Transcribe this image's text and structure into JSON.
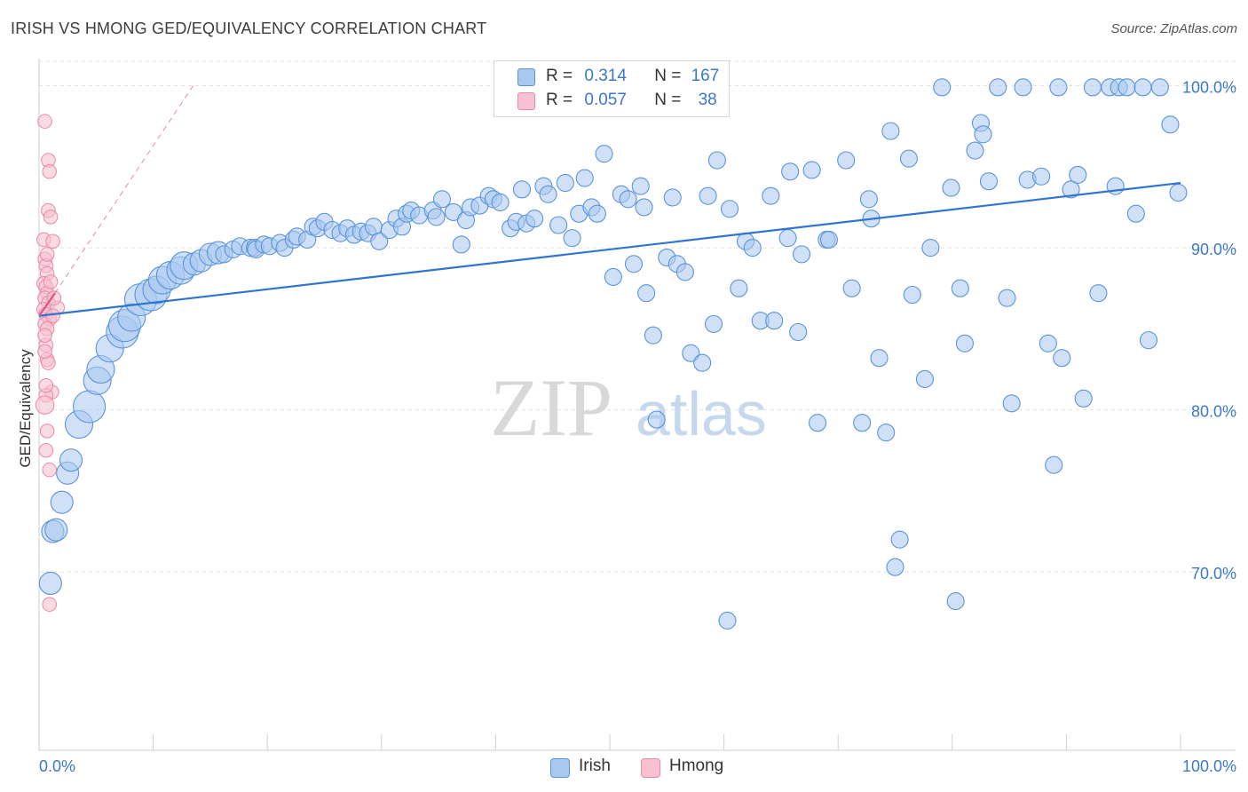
{
  "header": {
    "title": "IRISH VS HMONG GED/EQUIVALENCY CORRELATION CHART",
    "source": "Source: ZipAtlas.com"
  },
  "watermark": {
    "zip": "ZIP",
    "atlas": "atlas"
  },
  "legend": {
    "irish": {
      "r_label": "R =",
      "r_value": "0.314",
      "n_label": "N =",
      "n_value": "167"
    },
    "hmong": {
      "r_label": "R =",
      "r_value": "0.057",
      "n_label": "N =",
      "n_value": "38"
    }
  },
  "bottom_legend": {
    "irish": "Irish",
    "hmong": "Hmong"
  },
  "colors": {
    "irish_fill": "#a9c8f0",
    "irish_stroke": "#5a94d8",
    "irish_line": "#2f74d0",
    "hmong_fill": "#f7c1d1",
    "hmong_stroke": "#e88aa8",
    "hmong_line": "#e0557f",
    "grid": "#e2e2e2",
    "label": "#3b78c8"
  },
  "chart_data": {
    "type": "scatter",
    "title": "IRISH VS HMONG GED/EQUIVALENCY CORRELATION CHART",
    "ylabel": "GED/Equivalency",
    "xlabel": "",
    "xlim": [
      0,
      100
    ],
    "ylim": [
      59,
      102
    ],
    "x_tick_labels": [
      "0.0%",
      "100.0%"
    ],
    "y_ticks": [
      70,
      80,
      90,
      100
    ],
    "y_tick_labels": [
      "70.0%",
      "80.0%",
      "90.0%",
      "100.0%"
    ],
    "grid": true,
    "legend_position": "top-center",
    "series": [
      {
        "name": "Irish",
        "r": 0.314,
        "n": 167,
        "trend": {
          "x0": 0,
          "y0": 85.8,
          "x1": 100,
          "y1": 94.0
        },
        "points": [
          [
            1,
            69.3,
            3
          ],
          [
            1.2,
            72.5,
            3
          ],
          [
            1.5,
            72.6,
            3
          ],
          [
            2,
            74.3,
            3
          ],
          [
            2.5,
            76.1,
            3
          ],
          [
            2.8,
            76.9,
            3
          ],
          [
            3.5,
            79.1,
            4
          ],
          [
            4.4,
            80.2,
            5
          ],
          [
            5.1,
            81.8,
            4
          ],
          [
            5.4,
            82.5,
            4
          ],
          [
            6.2,
            83.8,
            4
          ],
          [
            7.3,
            84.8,
            5
          ],
          [
            7.5,
            85.2,
            5
          ],
          [
            8.1,
            85.7,
            4
          ],
          [
            8.9,
            86.8,
            5
          ],
          [
            9.8,
            87.1,
            5
          ],
          [
            10.3,
            87.4,
            4
          ],
          [
            10.8,
            88.0,
            4
          ],
          [
            11.5,
            88.3,
            4
          ],
          [
            12.4,
            88.6,
            4
          ],
          [
            12.7,
            88.9,
            4
          ],
          [
            13.6,
            89.0,
            3
          ],
          [
            14.2,
            89.2,
            3
          ],
          [
            15.0,
            89.6,
            3
          ],
          [
            15.7,
            89.7,
            3
          ],
          [
            16.2,
            89.6,
            2
          ],
          [
            17.0,
            89.9,
            2
          ],
          [
            17.6,
            90.1,
            2
          ],
          [
            18.5,
            90.0,
            2
          ],
          [
            18.9,
            90.0,
            2
          ],
          [
            19.0,
            89.9,
            2
          ],
          [
            19.7,
            90.2,
            2
          ],
          [
            20.2,
            90.1,
            2
          ],
          [
            21.1,
            90.3,
            2
          ],
          [
            21.5,
            90.0,
            2
          ],
          [
            22.3,
            90.5,
            2
          ],
          [
            22.6,
            90.7,
            2
          ],
          [
            23.5,
            90.5,
            2
          ],
          [
            24.0,
            91.3,
            2
          ],
          [
            24.4,
            91.2,
            2
          ],
          [
            25.0,
            91.6,
            2
          ],
          [
            25.7,
            91.1,
            2
          ],
          [
            26.4,
            90.9,
            2
          ],
          [
            27.0,
            91.2,
            2
          ],
          [
            27.6,
            90.8,
            2
          ],
          [
            28.2,
            91.0,
            2
          ],
          [
            28.8,
            90.9,
            2
          ],
          [
            29.3,
            91.3,
            2
          ],
          [
            29.8,
            90.4,
            2
          ],
          [
            30.7,
            91.1,
            2
          ],
          [
            31.3,
            91.8,
            2
          ],
          [
            31.8,
            91.3,
            2
          ],
          [
            32.2,
            92.1,
            2
          ],
          [
            32.6,
            92.3,
            2
          ],
          [
            33.3,
            92.0,
            2
          ],
          [
            34.5,
            92.3,
            2
          ],
          [
            34.8,
            91.9,
            2
          ],
          [
            35.3,
            93.0,
            2
          ],
          [
            36.3,
            92.2,
            2
          ],
          [
            37.0,
            90.2,
            2
          ],
          [
            37.4,
            91.7,
            2
          ],
          [
            37.8,
            92.5,
            2
          ],
          [
            38.6,
            92.6,
            2
          ],
          [
            39.4,
            93.2,
            2
          ],
          [
            39.8,
            93.0,
            2
          ],
          [
            40.4,
            92.8,
            2
          ],
          [
            41.3,
            91.2,
            2
          ],
          [
            41.8,
            91.6,
            2
          ],
          [
            42.3,
            93.6,
            2
          ],
          [
            42.7,
            91.5,
            2
          ],
          [
            43.4,
            91.8,
            2
          ],
          [
            44.2,
            93.8,
            2
          ],
          [
            44.6,
            93.3,
            2
          ],
          [
            45.5,
            91.4,
            2
          ],
          [
            46.1,
            94.0,
            2
          ],
          [
            46.7,
            90.6,
            2
          ],
          [
            47.3,
            92.1,
            2
          ],
          [
            47.8,
            94.3,
            2
          ],
          [
            48.4,
            92.5,
            2
          ],
          [
            48.9,
            92.1,
            2
          ],
          [
            49.5,
            95.8,
            2
          ],
          [
            50.3,
            88.2,
            2
          ],
          [
            51.0,
            93.3,
            2
          ],
          [
            51.6,
            93.0,
            2
          ],
          [
            52.1,
            89.0,
            2
          ],
          [
            52.7,
            93.8,
            2
          ],
          [
            53.0,
            92.5,
            2
          ],
          [
            53.2,
            87.2,
            2
          ],
          [
            53.8,
            84.6,
            2
          ],
          [
            54.1,
            79.4,
            2
          ],
          [
            55.0,
            89.4,
            2
          ],
          [
            55.5,
            93.1,
            2
          ],
          [
            55.9,
            89.0,
            2
          ],
          [
            56.6,
            88.5,
            2
          ],
          [
            57.1,
            83.5,
            2
          ],
          [
            58.1,
            82.9,
            2
          ],
          [
            58.6,
            93.2,
            2
          ],
          [
            59.1,
            85.3,
            2
          ],
          [
            59.4,
            95.4,
            2
          ],
          [
            60.3,
            67.0,
            2
          ],
          [
            60.5,
            92.4,
            2
          ],
          [
            61.3,
            87.5,
            2
          ],
          [
            61.9,
            90.4,
            2
          ],
          [
            62.5,
            90.0,
            2
          ],
          [
            63.2,
            85.5,
            2
          ],
          [
            64.1,
            93.2,
            2
          ],
          [
            64.4,
            85.5,
            2
          ],
          [
            65.6,
            90.6,
            2
          ],
          [
            65.8,
            94.7,
            2
          ],
          [
            66.5,
            84.8,
            2
          ],
          [
            66.8,
            89.6,
            2
          ],
          [
            67.7,
            94.8,
            2
          ],
          [
            68.2,
            79.2,
            2
          ],
          [
            69.0,
            90.5,
            2
          ],
          [
            69.2,
            90.5,
            2
          ],
          [
            70.7,
            95.4,
            2
          ],
          [
            71.2,
            87.5,
            2
          ],
          [
            72.1,
            79.2,
            2
          ],
          [
            72.7,
            93.0,
            2
          ],
          [
            72.9,
            91.8,
            2
          ],
          [
            73.6,
            83.2,
            2
          ],
          [
            74.2,
            78.6,
            2
          ],
          [
            74.6,
            97.2,
            2
          ],
          [
            75.0,
            70.3,
            2
          ],
          [
            75.4,
            72.0,
            2
          ],
          [
            76.2,
            95.5,
            2
          ],
          [
            76.5,
            87.1,
            2
          ],
          [
            77.6,
            81.9,
            2
          ],
          [
            78.1,
            90.0,
            2
          ],
          [
            79.1,
            99.9,
            2
          ],
          [
            79.9,
            93.7,
            2
          ],
          [
            80.3,
            68.2,
            2
          ],
          [
            80.7,
            87.5,
            2
          ],
          [
            81.1,
            84.1,
            2
          ],
          [
            82.0,
            96.0,
            2
          ],
          [
            82.5,
            97.7,
            2
          ],
          [
            82.7,
            97.0,
            2
          ],
          [
            83.2,
            94.1,
            2
          ],
          [
            84.0,
            99.9,
            2
          ],
          [
            84.8,
            86.9,
            2
          ],
          [
            85.2,
            80.4,
            2
          ],
          [
            86.2,
            99.9,
            2
          ],
          [
            86.6,
            94.2,
            2
          ],
          [
            87.8,
            94.4,
            2
          ],
          [
            88.4,
            84.1,
            2
          ],
          [
            88.9,
            76.6,
            2
          ],
          [
            89.3,
            99.9,
            2
          ],
          [
            89.6,
            83.2,
            2
          ],
          [
            90.4,
            93.6,
            2
          ],
          [
            91.0,
            94.5,
            2
          ],
          [
            91.5,
            80.7,
            2
          ],
          [
            92.3,
            99.9,
            2
          ],
          [
            92.8,
            87.2,
            2
          ],
          [
            93.8,
            99.9,
            2
          ],
          [
            94.3,
            93.8,
            2
          ],
          [
            94.6,
            99.9,
            2
          ],
          [
            95.3,
            99.9,
            2
          ],
          [
            96.1,
            92.1,
            2
          ],
          [
            96.7,
            99.9,
            2
          ],
          [
            97.2,
            84.3,
            2
          ],
          [
            98.2,
            99.9,
            2
          ],
          [
            99.1,
            97.6,
            2
          ],
          [
            99.8,
            93.4,
            2
          ]
        ]
      },
      {
        "name": "Hmong",
        "r": 0.057,
        "n": 38,
        "trend": {
          "x0": 0,
          "y0": 85.8,
          "x1": 1.4,
          "y1": 87.2
        },
        "trend_extension": {
          "x0": 1.4,
          "y0": 87.2,
          "x1": 13.5,
          "y1": 100.0
        },
        "points": [
          [
            0.2,
            97.8,
            2
          ],
          [
            0.5,
            95.4,
            2
          ],
          [
            0.6,
            94.7,
            2
          ],
          [
            0.5,
            92.3,
            2
          ],
          [
            0.7,
            91.9,
            2
          ],
          [
            0.1,
            90.5,
            2
          ],
          [
            0.9,
            90.4,
            2
          ],
          [
            0.2,
            89.3,
            2
          ],
          [
            0.3,
            88.9,
            2
          ],
          [
            0.4,
            88.4,
            2
          ],
          [
            0.1,
            87.8,
            2
          ],
          [
            0.3,
            87.6,
            2
          ],
          [
            0.4,
            87.2,
            2
          ],
          [
            0.2,
            86.9,
            2
          ],
          [
            0.5,
            86.6,
            2
          ],
          [
            0.1,
            86.2,
            2
          ],
          [
            0.3,
            85.9,
            2
          ],
          [
            0.6,
            85.6,
            2
          ],
          [
            0.2,
            85.3,
            2
          ],
          [
            0.4,
            85.0,
            2
          ],
          [
            1.3,
            86.3,
            2
          ],
          [
            0.3,
            84.0,
            2
          ],
          [
            0.4,
            83.1,
            2
          ],
          [
            0.5,
            82.9,
            2
          ],
          [
            0.8,
            81.1,
            2
          ],
          [
            0.3,
            80.9,
            2
          ],
          [
            0.2,
            80.3,
            3
          ],
          [
            0.4,
            78.7,
            2
          ],
          [
            0.3,
            77.5,
            2
          ],
          [
            0.6,
            76.3,
            2
          ],
          [
            0.6,
            68.0,
            2
          ],
          [
            0.2,
            84.6,
            2
          ],
          [
            0.7,
            87.9,
            2
          ],
          [
            0.4,
            89.6,
            2
          ],
          [
            0.9,
            85.8,
            2
          ],
          [
            0.2,
            83.6,
            2
          ],
          [
            1.0,
            86.9,
            2
          ],
          [
            0.3,
            81.5,
            2
          ]
        ]
      }
    ]
  }
}
